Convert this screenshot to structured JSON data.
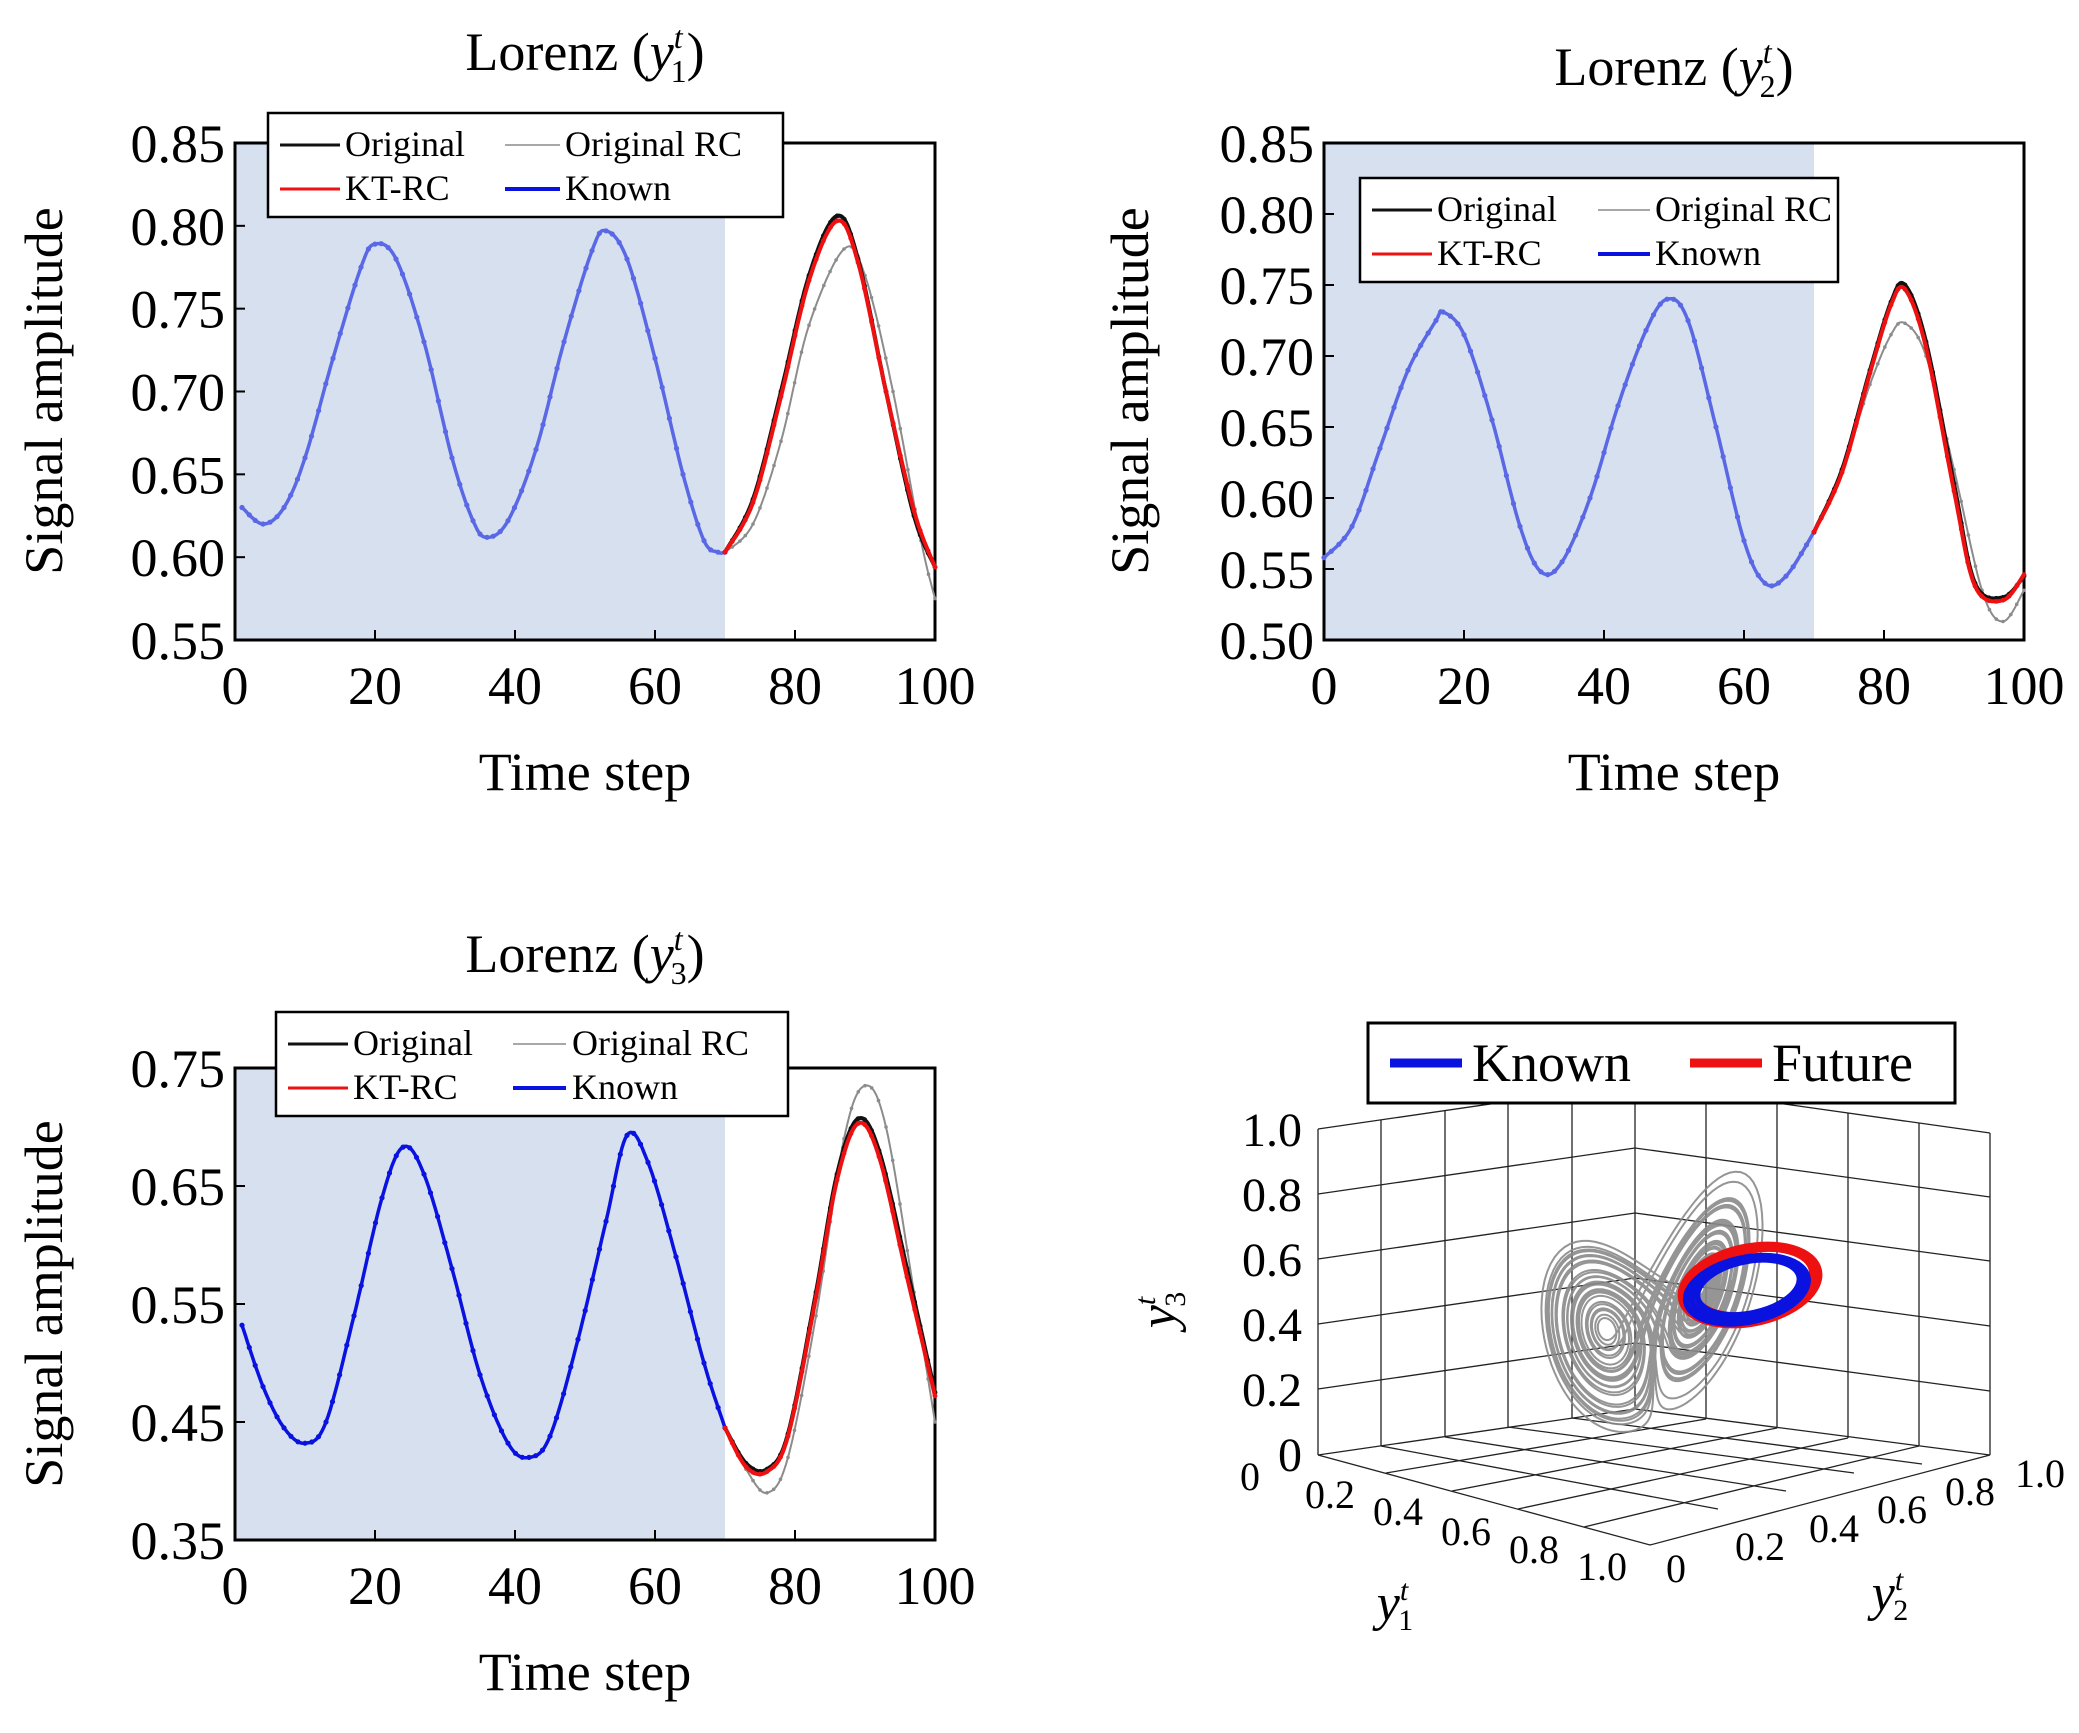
{
  "chart_data": [
    {
      "type": "line",
      "title_main": "Lorenz (",
      "title_var": "y",
      "title_sup": "t",
      "title_sub": "1",
      "title_end": ")",
      "xlabel": "Time step",
      "ylabel": "Signal amplitude",
      "xlim": [
        0,
        100
      ],
      "ylim": [
        0.55,
        0.85
      ],
      "xticks": [
        "0",
        "20",
        "40",
        "60",
        "80",
        "100"
      ],
      "yticks": [
        "0.55",
        "0.60",
        "0.65",
        "0.70",
        "0.75",
        "0.80",
        "0.85"
      ],
      "known_region": [
        0,
        70
      ],
      "legend": [
        "Original",
        "Original RC",
        "KT-RC",
        "Known"
      ],
      "known": [
        [
          1,
          0.63
        ],
        [
          4,
          0.62
        ],
        [
          7,
          0.63
        ],
        [
          10,
          0.66
        ],
        [
          14,
          0.72
        ],
        [
          18,
          0.775
        ],
        [
          20,
          0.789
        ],
        [
          23,
          0.78
        ],
        [
          27,
          0.73
        ],
        [
          31,
          0.66
        ],
        [
          34,
          0.622
        ],
        [
          36,
          0.612
        ],
        [
          39,
          0.622
        ],
        [
          43,
          0.665
        ],
        [
          47,
          0.73
        ],
        [
          51,
          0.785
        ],
        [
          53,
          0.797
        ],
        [
          56,
          0.78
        ],
        [
          60,
          0.72
        ],
        [
          64,
          0.65
        ],
        [
          67,
          0.61
        ],
        [
          69,
          0.603
        ],
        [
          70,
          0.603
        ]
      ],
      "original": [
        [
          70,
          0.603
        ],
        [
          74,
          0.635
        ],
        [
          78,
          0.7
        ],
        [
          82,
          0.77
        ],
        [
          86,
          0.806
        ],
        [
          89,
          0.78
        ],
        [
          93,
          0.7
        ],
        [
          97,
          0.625
        ],
        [
          100,
          0.594
        ]
      ],
      "kt_rc": [
        [
          70,
          0.603
        ],
        [
          74,
          0.633
        ],
        [
          78,
          0.697
        ],
        [
          82,
          0.767
        ],
        [
          86,
          0.803
        ],
        [
          89,
          0.778
        ],
        [
          93,
          0.7
        ],
        [
          97,
          0.628
        ],
        [
          100,
          0.594
        ]
      ],
      "original_rc": [
        [
          70,
          0.603
        ],
        [
          74,
          0.62
        ],
        [
          78,
          0.67
        ],
        [
          82,
          0.74
        ],
        [
          87,
          0.786
        ],
        [
          90,
          0.77
        ],
        [
          94,
          0.7
        ],
        [
          98,
          0.61
        ],
        [
          100,
          0.575
        ]
      ]
    },
    {
      "type": "line",
      "title_main": "Lorenz (",
      "title_var": "y",
      "title_sup": "t",
      "title_sub": "2",
      "title_end": ")",
      "xlabel": "Time step",
      "ylabel": "Signal amplitude",
      "xlim": [
        0,
        100
      ],
      "ylim": [
        0.5,
        0.85
      ],
      "xticks": [
        "0",
        "20",
        "40",
        "60",
        "80",
        "100"
      ],
      "yticks": [
        "0.50",
        "0.55",
        "0.60",
        "0.65",
        "0.70",
        "0.75",
        "0.80",
        "0.85"
      ],
      "known_region": [
        0,
        70
      ],
      "legend": [
        "Original",
        "Original RC",
        "KT-RC",
        "Known"
      ],
      "known": [
        [
          0,
          0.558
        ],
        [
          4,
          0.58
        ],
        [
          8,
          0.635
        ],
        [
          12,
          0.69
        ],
        [
          16,
          0.725
        ],
        [
          17,
          0.731
        ],
        [
          20,
          0.715
        ],
        [
          24,
          0.655
        ],
        [
          28,
          0.58
        ],
        [
          31,
          0.548
        ],
        [
          34,
          0.555
        ],
        [
          38,
          0.6
        ],
        [
          42,
          0.665
        ],
        [
          46,
          0.718
        ],
        [
          49,
          0.74
        ],
        [
          52,
          0.725
        ],
        [
          56,
          0.65
        ],
        [
          60,
          0.57
        ],
        [
          63,
          0.54
        ],
        [
          66,
          0.545
        ],
        [
          70,
          0.576
        ]
      ],
      "original": [
        [
          70,
          0.576
        ],
        [
          74,
          0.62
        ],
        [
          78,
          0.69
        ],
        [
          81,
          0.738
        ],
        [
          83,
          0.75
        ],
        [
          86,
          0.71
        ],
        [
          90,
          0.61
        ],
        [
          93,
          0.54
        ],
        [
          97,
          0.53
        ],
        [
          100,
          0.545
        ]
      ],
      "kt_rc": [
        [
          70,
          0.576
        ],
        [
          74,
          0.618
        ],
        [
          78,
          0.688
        ],
        [
          81,
          0.736
        ],
        [
          83,
          0.747
        ],
        [
          86,
          0.706
        ],
        [
          90,
          0.605
        ],
        [
          93,
          0.538
        ],
        [
          97,
          0.528
        ],
        [
          100,
          0.546
        ]
      ],
      "original_rc": [
        [
          70,
          0.576
        ],
        [
          74,
          0.62
        ],
        [
          78,
          0.68
        ],
        [
          81,
          0.715
        ],
        [
          83,
          0.723
        ],
        [
          86,
          0.7
        ],
        [
          90,
          0.62
        ],
        [
          94,
          0.535
        ],
        [
          97,
          0.513
        ],
        [
          100,
          0.535
        ]
      ]
    },
    {
      "type": "line",
      "title_main": "Lorenz (",
      "title_var": "y",
      "title_sup": "t",
      "title_sub": "3",
      "title_end": ")",
      "xlabel": "Time step",
      "ylabel": "Signal amplitude",
      "xlim": [
        0,
        100
      ],
      "ylim": [
        0.35,
        0.75
      ],
      "xticks": [
        "0",
        "20",
        "40",
        "60",
        "80",
        "100"
      ],
      "yticks": [
        "0.35",
        "0.45",
        "0.55",
        "0.65",
        "0.75"
      ],
      "known_region": [
        0,
        70
      ],
      "legend": [
        "Original",
        "Original RC",
        "KT-RC",
        "Known"
      ],
      "known": [
        [
          1,
          0.532
        ],
        [
          4,
          0.48
        ],
        [
          7,
          0.445
        ],
        [
          10,
          0.432
        ],
        [
          13,
          0.45
        ],
        [
          17,
          0.54
        ],
        [
          21,
          0.64
        ],
        [
          24,
          0.683
        ],
        [
          27,
          0.66
        ],
        [
          31,
          0.58
        ],
        [
          35,
          0.49
        ],
        [
          39,
          0.432
        ],
        [
          42,
          0.42
        ],
        [
          45,
          0.438
        ],
        [
          49,
          0.52
        ],
        [
          53,
          0.62
        ],
        [
          56,
          0.693
        ],
        [
          59,
          0.67
        ],
        [
          63,
          0.59
        ],
        [
          67,
          0.5
        ],
        [
          70,
          0.445
        ]
      ],
      "original": [
        [
          70,
          0.445
        ],
        [
          73,
          0.415
        ],
        [
          76,
          0.41
        ],
        [
          79,
          0.44
        ],
        [
          83,
          0.56
        ],
        [
          86,
          0.66
        ],
        [
          89,
          0.707
        ],
        [
          92,
          0.68
        ],
        [
          96,
          0.58
        ],
        [
          100,
          0.475
        ]
      ],
      "kt_rc": [
        [
          70,
          0.445
        ],
        [
          73,
          0.412
        ],
        [
          76,
          0.408
        ],
        [
          79,
          0.438
        ],
        [
          83,
          0.556
        ],
        [
          86,
          0.655
        ],
        [
          89,
          0.703
        ],
        [
          92,
          0.675
        ],
        [
          96,
          0.573
        ],
        [
          100,
          0.472
        ]
      ],
      "original_rc": [
        [
          70,
          0.445
        ],
        [
          73,
          0.41
        ],
        [
          76,
          0.39
        ],
        [
          79,
          0.42
        ],
        [
          83,
          0.54
        ],
        [
          87,
          0.69
        ],
        [
          90,
          0.735
        ],
        [
          93,
          0.7
        ],
        [
          97,
          0.56
        ],
        [
          100,
          0.45
        ]
      ]
    }
  ],
  "panel3d": {
    "legend": [
      "Known",
      "Future"
    ],
    "z_ticks": [
      "1.0",
      "0.8",
      "0.6",
      "0.4",
      "0.2",
      "0"
    ],
    "x_ticks": [
      "0",
      "0.2",
      "0.4",
      "0.6",
      "0.8",
      "1.0"
    ],
    "y_ticks": [
      "0",
      "0.2",
      "0.4",
      "0.6",
      "0.8",
      "1.0"
    ],
    "xlabel_var": "y",
    "xlabel_sup": "t",
    "xlabel_sub": "1",
    "ylabel_var": "y",
    "ylabel_sup": "t",
    "ylabel_sub": "2",
    "zlabel_var": "y",
    "zlabel_sup": "t",
    "zlabel_sub": "3"
  },
  "colors": {
    "known": "#0a12e0",
    "known_light": "#5a68e6",
    "future": "#ee1111",
    "original": "#111111",
    "original_rc": "#8c8c8c",
    "shade": "#d6e0ef",
    "attractor": "#8a8a8a"
  }
}
